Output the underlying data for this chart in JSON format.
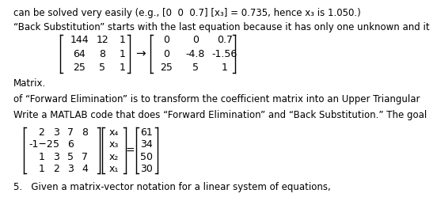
{
  "bg_color": "#ffffff",
  "text_color": "#000000",
  "font_size_body": 8.5,
  "font_size_matrix": 9.0,
  "line1": "5.   Given a matrix-vector notation for a linear system of equations,",
  "para1a": "Write a MATLAB code that does “Forward Elimination” and “Back Substitution.” The goal",
  "para1b": "of “Forward Elimination” is to transform the coefficient matrix into an Upper Triangular",
  "para1c": "Matrix.",
  "para2a": "“Back Substitution” starts with the last equation because it has only one unknown and it",
  "para2b": "can be solved very easily (e.g., [0  0  0.7] [x₃] = 0.735, hence x₃ is 1.050.)"
}
